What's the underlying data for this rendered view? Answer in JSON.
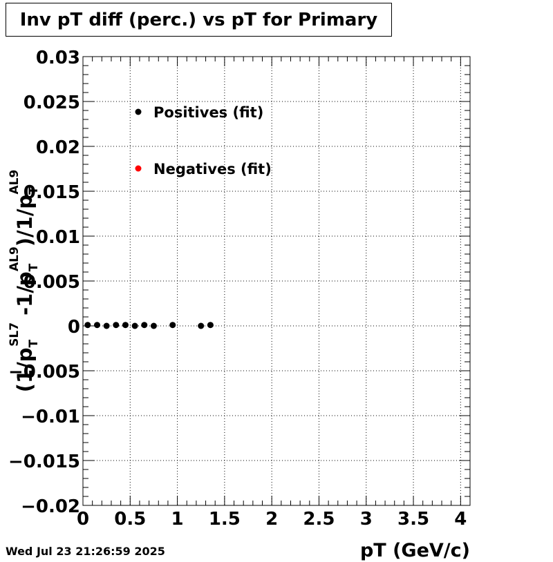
{
  "title": "Inv pT diff (perc.) vs pT for Primary",
  "timestamp": "Wed Jul 23 21:26:59 2025",
  "chart_data": {
    "type": "scatter",
    "title": "Inv pT diff (perc.) vs pT for Primary",
    "xlabel": "pT (GeV/c)",
    "ylabel": {
      "open": "(1/p",
      "sub1": "T",
      "sup1": "SL7",
      "mid": " -1/p",
      "sub2": "T",
      "sup2": "AL9",
      "slash": ")/1/p",
      "sub3": "T",
      "sup3": "AL9"
    },
    "xlim": [
      0,
      4.1
    ],
    "ylim": [
      -0.02,
      0.03
    ],
    "xticks": [
      {
        "value": 0,
        "label": "0"
      },
      {
        "value": 0.5,
        "label": "0.5"
      },
      {
        "value": 1,
        "label": "1"
      },
      {
        "value": 1.5,
        "label": "1.5"
      },
      {
        "value": 2,
        "label": "2"
      },
      {
        "value": 2.5,
        "label": "2.5"
      },
      {
        "value": 3,
        "label": "3"
      },
      {
        "value": 3.5,
        "label": "3.5"
      },
      {
        "value": 4,
        "label": "4"
      }
    ],
    "yticks": [
      {
        "value": 0.03,
        "label": "0.03"
      },
      {
        "value": 0.025,
        "label": "0.025"
      },
      {
        "value": 0.02,
        "label": "0.02"
      },
      {
        "value": 0.015,
        "label": "0.015"
      },
      {
        "value": 0.01,
        "label": "0.01"
      },
      {
        "value": 0.005,
        "label": "0.005"
      },
      {
        "value": 0,
        "label": "0"
      },
      {
        "value": -0.005,
        "label": "−0.005"
      },
      {
        "value": -0.01,
        "label": "−0.01"
      },
      {
        "value": -0.015,
        "label": "−0.015"
      },
      {
        "value": -0.02,
        "label": "−0.02"
      }
    ],
    "grid": true,
    "legend_position": "top-left",
    "series": [
      {
        "name": "Positives (fit)",
        "color": "#000000",
        "points": [
          {
            "x": 0.05,
            "y": 0.0001
          },
          {
            "x": 0.15,
            "y": 0.0001
          },
          {
            "x": 0.25,
            "y": 0.0
          },
          {
            "x": 0.35,
            "y": 0.0001
          },
          {
            "x": 0.45,
            "y": 0.0001
          },
          {
            "x": 0.55,
            "y": 0.0
          },
          {
            "x": 0.65,
            "y": 0.0001
          },
          {
            "x": 0.75,
            "y": 0.0
          },
          {
            "x": 0.95,
            "y": 0.0001
          },
          {
            "x": 1.25,
            "y": 0.0
          },
          {
            "x": 1.35,
            "y": 0.0001
          }
        ]
      },
      {
        "name": "Negatives (fit)",
        "color": "#ff0000",
        "points": []
      }
    ]
  }
}
